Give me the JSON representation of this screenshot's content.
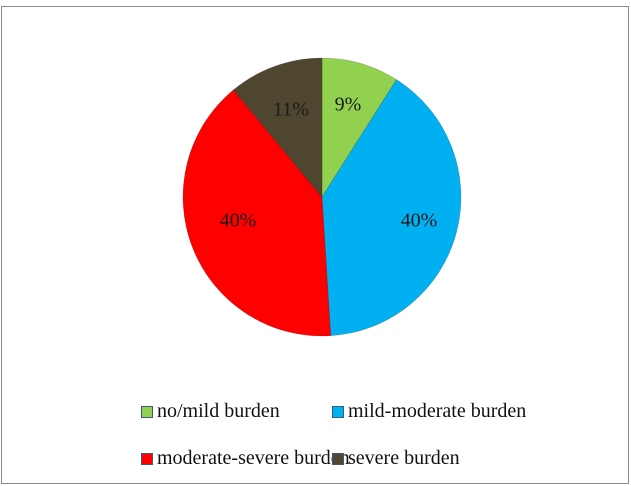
{
  "chart_data": {
    "type": "pie",
    "slices": [
      {
        "label": "no/mild burden",
        "value": 9,
        "display": "9%",
        "color": "#92d050"
      },
      {
        "label": "mild-moderate burden",
        "value": 40,
        "display": "40%",
        "color": "#00b0f0"
      },
      {
        "label": "moderate-severe burden",
        "value": 40,
        "display": "40%",
        "color": "#ff0000"
      },
      {
        "label": "severe burden",
        "value": 11,
        "display": "11%",
        "color": "#4f4630"
      }
    ],
    "legend_position": "bottom"
  }
}
